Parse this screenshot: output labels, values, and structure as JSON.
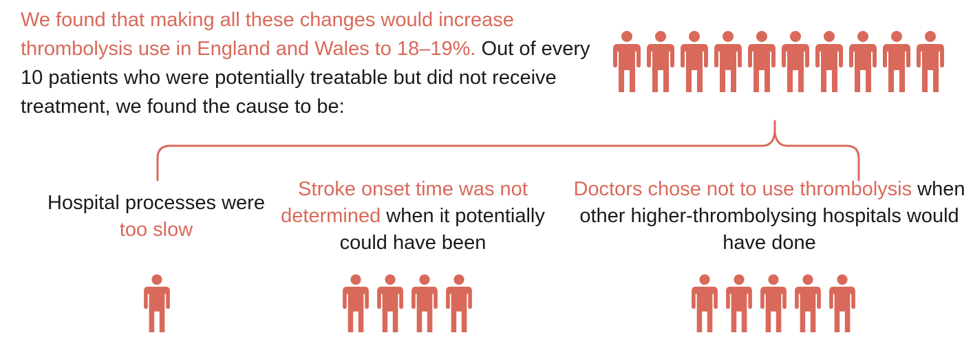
{
  "colors": {
    "accent": "#d9695a",
    "text": "#1a1a1a"
  },
  "intro": {
    "highlight": "We found that making all these changes would increase thrombolysis use in England and Wales to 18–19%.",
    "rest": " Out of every 10 patients who were potentially treatable but did not receive treatment, we found the cause to be:"
  },
  "total_people": 10,
  "causes": [
    {
      "pre": "Hospital processes were ",
      "highlight": "too slow",
      "post": "",
      "count": 1
    },
    {
      "pre": "",
      "highlight": "Stroke onset time was not determined",
      "post": " when it potentially could have been",
      "count": 4
    },
    {
      "pre": "",
      "highlight": "Doctors chose not to use thrombolysis",
      "post": " when other higher-thrombolysing hospitals would have done",
      "count": 5
    }
  ],
  "icons": {
    "person": "person-icon"
  }
}
